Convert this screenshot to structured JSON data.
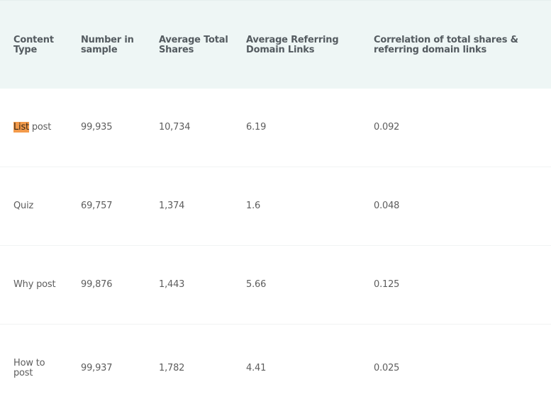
{
  "table": {
    "headers": [
      "Content Type",
      "Number in sample",
      "Average Total Shares",
      "Average Referring Domain Links",
      "Correlation of total shares & referring domain links"
    ],
    "rows": [
      {
        "content_type_highlight": "List",
        "content_type_rest": " post",
        "number_in_sample": "99,935",
        "average_total_shares": "10,734",
        "average_referring_domain_links": "6.19",
        "correlation": "0.092"
      },
      {
        "content_type": "Quiz",
        "number_in_sample": "69,757",
        "average_total_shares": "1,374",
        "average_referring_domain_links": "1.6",
        "correlation": "0.048"
      },
      {
        "content_type": "Why post",
        "number_in_sample": "99,876",
        "average_total_shares": "1,443",
        "average_referring_domain_links": "5.66",
        "correlation": "0.125"
      },
      {
        "content_type_line1": "How to",
        "content_type_line2": "post",
        "number_in_sample": "99,937",
        "average_total_shares": "1,782",
        "average_referring_domain_links": "4.41",
        "correlation": "0.025"
      }
    ],
    "highlight_color": "#f39a4a",
    "header_background": "#eef6f5"
  }
}
